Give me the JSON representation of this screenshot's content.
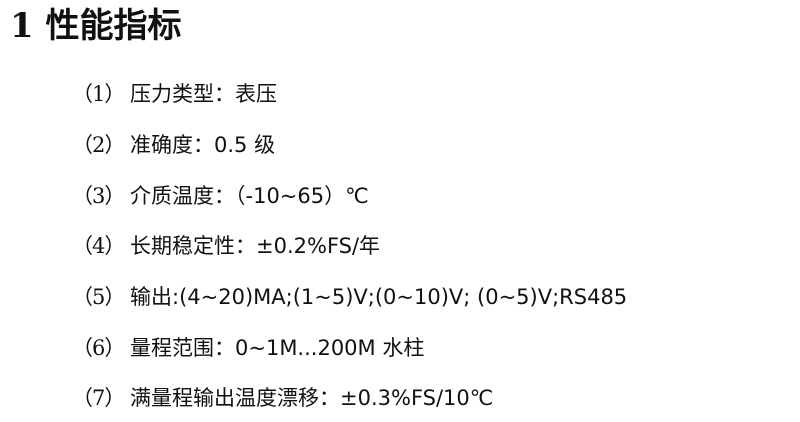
{
  "title": "1 性能指标",
  "items": [
    {
      "num": "（1）",
      "text": "压力类型：表压"
    },
    {
      "num": "（2）",
      "text": "准确度：0.5 级"
    },
    {
      "num": "（3）",
      "text": "介质温度：（-10~65）℃"
    },
    {
      "num": "（4）",
      "text": "长期稳定性：±0.2%FS/年"
    },
    {
      "num": "（5）",
      "text": "输出:(4~20)MA;(1~5)V;(0~10)V; (0~5)V;RS485"
    },
    {
      "num": "（6）",
      "text": "量程范围：0~1M...200M 水柱"
    },
    {
      "num": "（7）",
      "text": "满量程输出温度漂移：±0.3%FS/10℃"
    }
  ]
}
